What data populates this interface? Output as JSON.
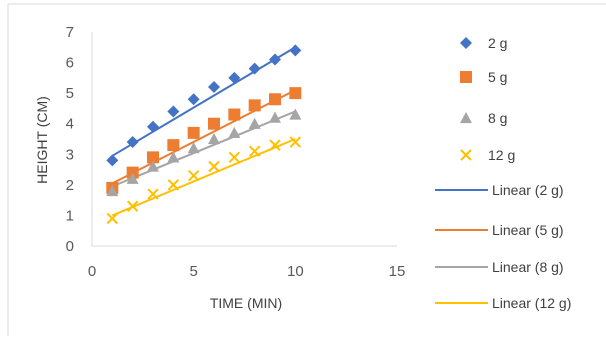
{
  "chart_data": {
    "type": "scatter",
    "title": "",
    "xlabel": "TIME (MIN)",
    "ylabel": "HEIGHT (CM)",
    "xlim": [
      0,
      15
    ],
    "ylim": [
      0,
      7
    ],
    "x_ticks": [
      0,
      5,
      10,
      15
    ],
    "y_ticks": [
      0,
      1,
      2,
      3,
      4,
      5,
      6,
      7
    ],
    "grid": false,
    "legend_position": "right",
    "series": [
      {
        "name": "2 g",
        "marker": "diamond",
        "color": "#4472c4",
        "points": [
          [
            1,
            2.8
          ],
          [
            2,
            3.4
          ],
          [
            3,
            3.9
          ],
          [
            4,
            4.4
          ],
          [
            5,
            4.8
          ],
          [
            6,
            5.2
          ],
          [
            7,
            5.5
          ],
          [
            8,
            5.8
          ],
          [
            9,
            6.1
          ],
          [
            10,
            6.4
          ]
        ],
        "trendline": {
          "name": "Linear (2 g)",
          "color": "#4472c4",
          "x_range": [
            1,
            10
          ],
          "y_range": [
            2.95,
            6.5
          ]
        }
      },
      {
        "name": "5 g",
        "marker": "square",
        "color": "#ed7d31",
        "points": [
          [
            1,
            1.9
          ],
          [
            2,
            2.4
          ],
          [
            3,
            2.9
          ],
          [
            4,
            3.3
          ],
          [
            5,
            3.7
          ],
          [
            6,
            4.0
          ],
          [
            7,
            4.3
          ],
          [
            8,
            4.6
          ],
          [
            9,
            4.8
          ],
          [
            10,
            5.0
          ]
        ],
        "trendline": {
          "name": "Linear (5 g)",
          "color": "#ed7d31",
          "x_range": [
            1,
            10
          ],
          "y_range": [
            2.05,
            5.1
          ]
        }
      },
      {
        "name": "8 g",
        "marker": "triangle",
        "color": "#a5a5a5",
        "points": [
          [
            1,
            1.8
          ],
          [
            2,
            2.2
          ],
          [
            3,
            2.6
          ],
          [
            4,
            2.9
          ],
          [
            5,
            3.2
          ],
          [
            6,
            3.5
          ],
          [
            7,
            3.7
          ],
          [
            8,
            4.0
          ],
          [
            9,
            4.2
          ],
          [
            10,
            4.3
          ]
        ],
        "trendline": {
          "name": "Linear (8 g)",
          "color": "#a5a5a5",
          "x_range": [
            1,
            10
          ],
          "y_range": [
            1.95,
            4.4
          ]
        }
      },
      {
        "name": "12 g",
        "marker": "x",
        "color": "#ffc000",
        "points": [
          [
            1,
            0.9
          ],
          [
            2,
            1.3
          ],
          [
            3,
            1.7
          ],
          [
            4,
            2.0
          ],
          [
            5,
            2.3
          ],
          [
            6,
            2.6
          ],
          [
            7,
            2.9
          ],
          [
            8,
            3.1
          ],
          [
            9,
            3.3
          ],
          [
            10,
            3.4
          ]
        ],
        "trendline": {
          "name": "Linear (12 g)",
          "color": "#ffc000",
          "x_range": [
            1,
            10
          ],
          "y_range": [
            1.0,
            3.5
          ]
        }
      }
    ],
    "legend": [
      "2 g",
      "5 g",
      "8 g",
      "12 g",
      "Linear (2 g)",
      "Linear (5 g)",
      "Linear (8 g)",
      "Linear (12 g)"
    ]
  }
}
